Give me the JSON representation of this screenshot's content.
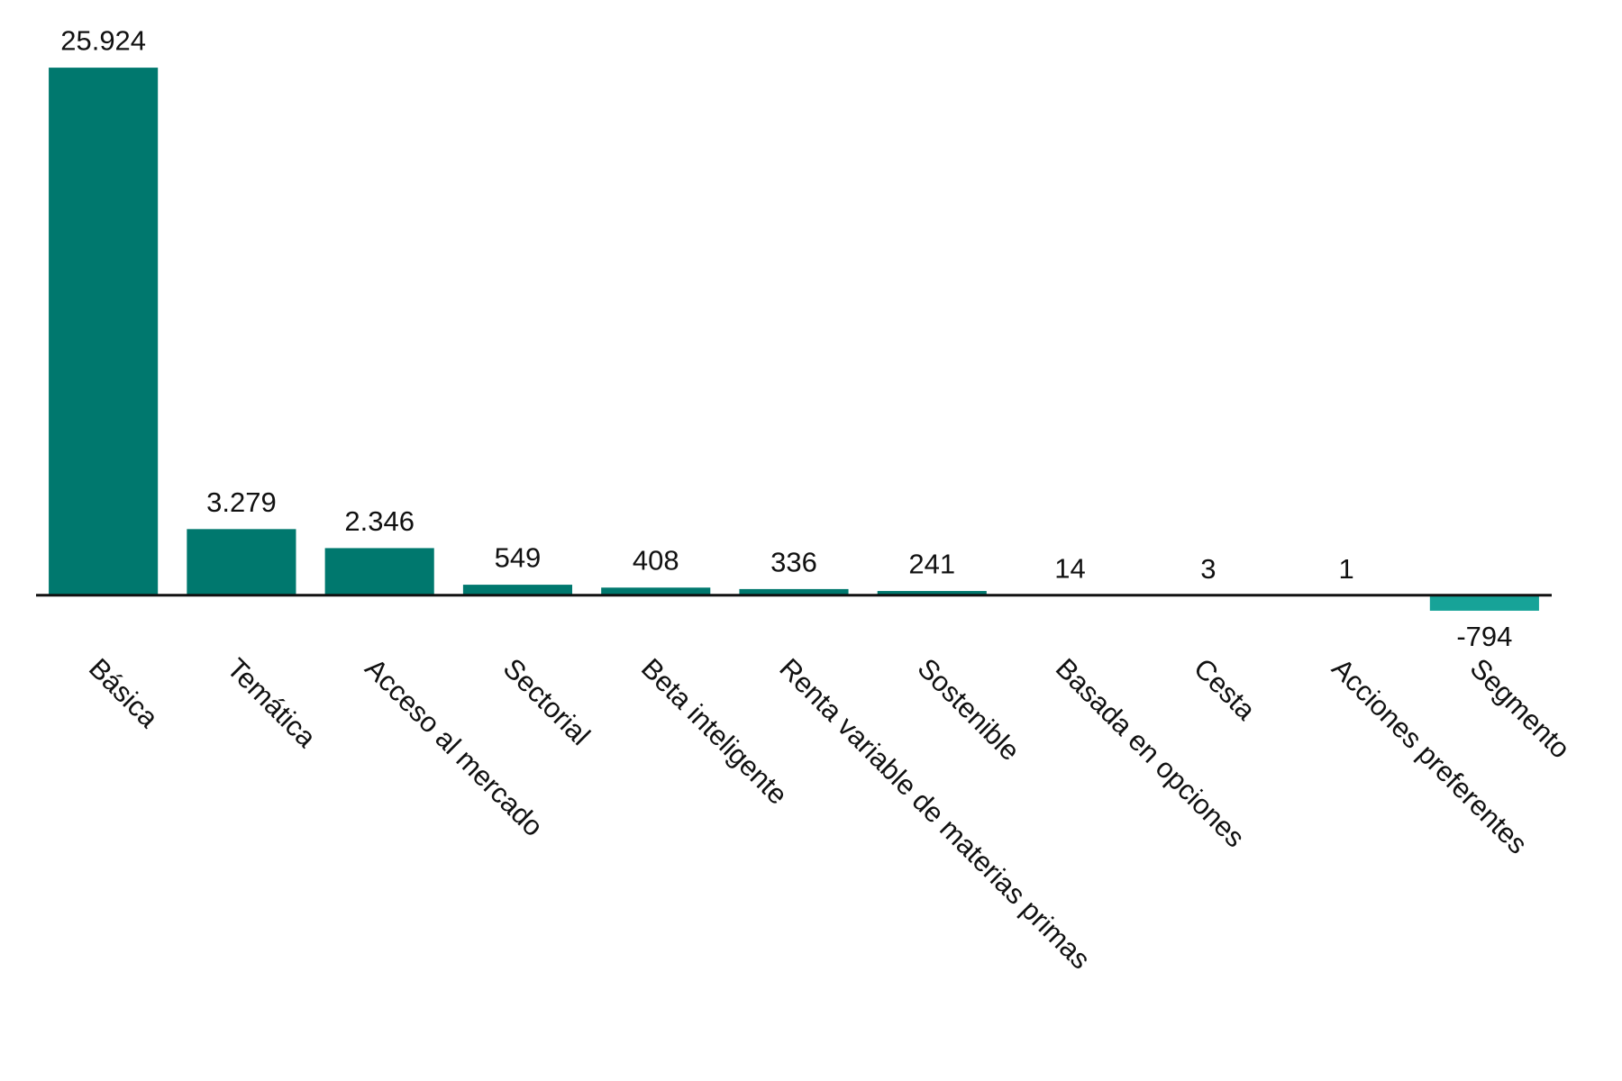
{
  "chart_data": {
    "type": "bar",
    "categories": [
      "Básica",
      "Temática",
      "Acceso al mercado",
      "Sectorial",
      "Beta inteligente",
      "Renta variable de materias primas",
      "Sostenible",
      "Basada en opciones",
      "Cesta",
      "Acciones preferentes",
      "Segmento"
    ],
    "values": [
      25924,
      3279,
      2346,
      549,
      408,
      336,
      241,
      14,
      3,
      1,
      -794
    ],
    "value_labels": [
      "25.924",
      "3.279",
      "2.346",
      "549",
      "408",
      "336",
      "241",
      "14",
      "3",
      "1",
      "-794"
    ],
    "color": "#00786e",
    "negative_color": "#17a398",
    "ylim": [
      -2000,
      27000
    ]
  }
}
